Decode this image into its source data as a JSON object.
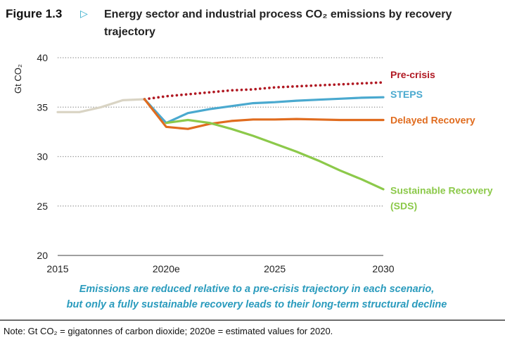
{
  "header": {
    "figure_label": "Figure 1.3",
    "arrow_icon": "triangle-right-icon",
    "title": "Energy sector and industrial process CO₂ emissions by recovery trajectory"
  },
  "caption_lines": [
    "Emissions are reduced relative to a pre-crisis trajectory in each scenario,",
    "but only a fully sustainable recovery leads to their long-term structural decline"
  ],
  "note": "Note: Gt CO₂ = gigatonnes of carbon dioxide; 2020e = estimated values for 2020.",
  "chart_data": {
    "type": "line",
    "title": "Energy sector and industrial process CO₂ emissions by recovery trajectory",
    "ylabel": "Gt CO₂",
    "xlabel": "",
    "xlim": [
      2015,
      2030
    ],
    "ylim": [
      20,
      40
    ],
    "x_ticks": [
      2015,
      2020,
      2025,
      2030
    ],
    "x_tick_labels": [
      "2015",
      "2020e",
      "2025",
      "2030"
    ],
    "y_ticks": [
      20,
      25,
      30,
      35,
      40
    ],
    "grid": "horizontal-dotted",
    "legend": "direct-labels-right",
    "series": [
      {
        "name": "",
        "color": "#d9d4c4",
        "style": "solid",
        "x": [
          2015,
          2016,
          2017,
          2018,
          2019
        ],
        "y": [
          34.5,
          34.5,
          35.0,
          35.7,
          35.8
        ]
      },
      {
        "name": "Pre-crisis",
        "color": "#b01822",
        "style": "dotted",
        "x": [
          2019,
          2020,
          2021,
          2022,
          2023,
          2024,
          2025,
          2026,
          2027,
          2028,
          2029,
          2030
        ],
        "y": [
          35.8,
          36.1,
          36.3,
          36.5,
          36.7,
          36.8,
          37.0,
          37.1,
          37.2,
          37.3,
          37.4,
          37.5
        ]
      },
      {
        "name": "STEPS",
        "color": "#4aa9cf",
        "style": "solid",
        "x": [
          2019,
          2020,
          2021,
          2022,
          2023,
          2024,
          2025,
          2026,
          2027,
          2028,
          2029,
          2030
        ],
        "y": [
          35.8,
          33.4,
          34.4,
          34.8,
          35.1,
          35.4,
          35.5,
          35.65,
          35.75,
          35.85,
          35.95,
          36.0
        ]
      },
      {
        "name": "Delayed Recovery",
        "color": "#e06c1f",
        "style": "solid",
        "x": [
          2019,
          2020,
          2021,
          2022,
          2023,
          2024,
          2025,
          2026,
          2027,
          2028,
          2029,
          2030
        ],
        "y": [
          35.8,
          33.0,
          32.8,
          33.3,
          33.6,
          33.75,
          33.75,
          33.8,
          33.75,
          33.7,
          33.7,
          33.7
        ]
      },
      {
        "name": "Sustainable Recovery (SDS)",
        "label_lines": [
          "Sustainable Recovery",
          "(SDS)"
        ],
        "color": "#8cc94a",
        "style": "solid",
        "x": [
          2020,
          2021,
          2022,
          2023,
          2024,
          2025,
          2026,
          2027,
          2028,
          2029,
          2030
        ],
        "y": [
          33.4,
          33.7,
          33.4,
          32.8,
          32.1,
          31.3,
          30.5,
          29.6,
          28.6,
          27.7,
          26.7
        ]
      }
    ]
  }
}
